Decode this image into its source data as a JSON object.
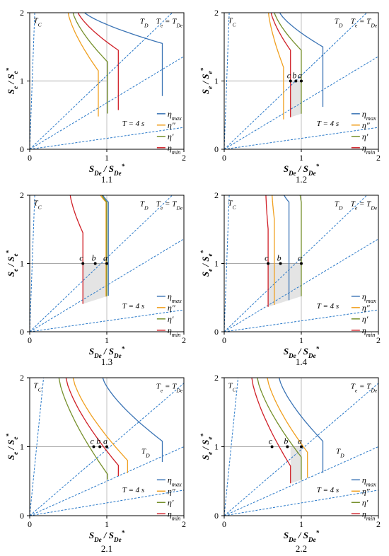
{
  "figure": {
    "xlabel": "S_De / S_De*",
    "ylabel": "S_e / S_e*",
    "x_ticks": [
      "0",
      "1",
      "2"
    ],
    "y_ticks": [
      "0",
      "1",
      "2"
    ],
    "line_labels": {
      "tc": "T_C",
      "td": "T_D",
      "te": "T_e = T_De",
      "t4": "T = 4 s"
    },
    "point_labels": [
      "c",
      "b",
      "a"
    ],
    "legend": [
      {
        "key": "max",
        "label": "η_max",
        "color": "#3b74b5"
      },
      {
        "key": "pp",
        "label": "η″",
        "color": "#f0a020"
      },
      {
        "key": "p",
        "label": "η′",
        "color": "#76902c"
      },
      {
        "key": "min",
        "label": "η_min",
        "color": "#d02028"
      }
    ],
    "colors": {
      "diag": "#2878c8",
      "ref": "#999999",
      "shade": "#e4e4e4"
    }
  },
  "chart_data": [
    {
      "id": "1.1",
      "caption": "1.1",
      "type": "line",
      "xlim": [
        0,
        2
      ],
      "ylim": [
        0,
        2
      ],
      "td_pos": "upper",
      "verticals": {
        "max": 1.72,
        "pp": 0.89,
        "p": 1.01,
        "min": 1.15
      },
      "curve_start": {
        "max": 0.67,
        "pp": 0.49,
        "p": 0.55,
        "min": 0.61
      },
      "curve_peak_y": {
        "max": 1.55,
        "pp": 1.15,
        "p": 1.28,
        "min": 1.45
      },
      "points": null,
      "shaded": false
    },
    {
      "id": "1.2",
      "caption": "1.2",
      "type": "line",
      "xlim": [
        0,
        2
      ],
      "ylim": [
        0,
        2
      ],
      "td_pos": "upper",
      "verticals": {
        "max": 1.28,
        "pp": 0.77,
        "p": 1.0,
        "min": 0.86
      },
      "curve_start": {
        "max": 0.7,
        "pp": 0.57,
        "p": 0.64,
        "min": 0.6
      },
      "curve_peak_y": {
        "max": 1.5,
        "pp": 1.2,
        "p": 1.45,
        "min": 1.45
      },
      "points": {
        "c": 0.86,
        "b": 0.93,
        "a": 1.0
      },
      "shaded": true
    },
    {
      "id": "1.3",
      "caption": "1.3",
      "type": "line",
      "xlim": [
        0,
        2
      ],
      "ylim": [
        0,
        2
      ],
      "td_pos": "upper",
      "verticals": {
        "max": 1.02,
        "pp": 0.99,
        "p": 1.0,
        "min": 0.69
      },
      "curve_start": {
        "max": 0.93,
        "pp": 0.9,
        "p": 0.92,
        "min": 0.52
      },
      "curve_peak_y": {
        "max": 1.9,
        "pp": 1.9,
        "p": 1.9,
        "min": 1.45
      },
      "points": {
        "c": 0.69,
        "b": 0.85,
        "a": 1.0
      },
      "shaded": true
    },
    {
      "id": "1.4",
      "caption": "1.4",
      "type": "line",
      "xlim": [
        0,
        2
      ],
      "ylim": [
        0,
        2
      ],
      "td_pos": "upper",
      "verticals": {
        "max": 0.84,
        "pp": 0.65,
        "p": 1.0,
        "min": 0.57
      },
      "curve_start": {
        "max": 0.76,
        "pp": 0.62,
        "p": 0.98,
        "min": 0.54
      },
      "curve_peak_y": {
        "max": 1.9,
        "pp": 1.65,
        "p": 1.9,
        "min": 1.5
      },
      "points": {
        "c": 0.57,
        "b": 0.73,
        "a": 1.0
      },
      "shaded": true
    },
    {
      "id": "2.1",
      "caption": "2.1",
      "type": "line",
      "xlim": [
        0,
        2
      ],
      "ylim": [
        0,
        2
      ],
      "td_pos": "lower",
      "verticals": {
        "max": 1.72,
        "pp": 1.27,
        "p": 1.01,
        "min": 1.15
      },
      "curve_start": {
        "max": 0.93,
        "pp": 0.55,
        "p": 0.37,
        "min": 0.46
      },
      "curve_peak_y": {
        "max": 1.08,
        "pp": 0.8,
        "p": 0.6,
        "min": 0.73
      },
      "points": {
        "c": 0.83,
        "b": 0.91,
        "a": 1.0
      },
      "shaded": false
    },
    {
      "id": "2.2",
      "caption": "2.2",
      "type": "line",
      "xlim": [
        0,
        2
      ],
      "ylim": [
        0,
        2
      ],
      "td_pos": "lower",
      "verticals": {
        "max": 1.28,
        "pp": 1.08,
        "p": 1.0,
        "min": 0.86
      },
      "curve_start": {
        "max": 0.7,
        "pp": 0.55,
        "p": 0.42,
        "min": 0.35
      },
      "curve_peak_y": {
        "max": 1.08,
        "pp": 0.92,
        "p": 0.85,
        "min": 0.72
      },
      "points": {
        "c": 0.62,
        "b": 0.82,
        "a": 1.0
      },
      "shaded": true
    }
  ]
}
